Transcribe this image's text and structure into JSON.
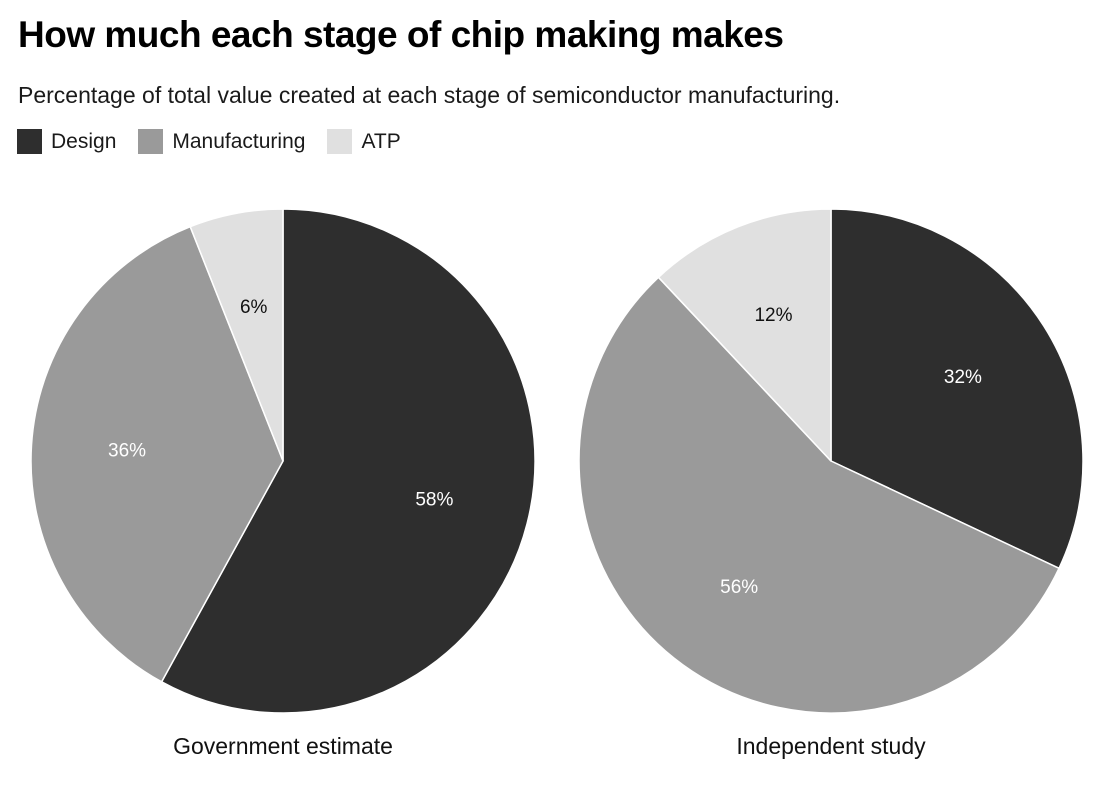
{
  "chart_data": [
    {
      "type": "pie",
      "title": "Government estimate",
      "categories": [
        "Design",
        "Manufacturing",
        "ATP"
      ],
      "values": [
        58,
        36,
        6
      ],
      "labels": [
        "58%",
        "36%",
        "6%"
      ]
    },
    {
      "type": "pie",
      "title": "Independent study",
      "categories": [
        "Design",
        "Manufacturing",
        "ATP"
      ],
      "values": [
        32,
        56,
        12
      ],
      "labels": [
        "32%",
        "56%",
        "12%"
      ]
    }
  ],
  "header": {
    "title": "How much each stage of chip making makes",
    "subtitle": "Percentage of total value created at each stage of semiconductor manufacturing."
  },
  "legend": {
    "items": [
      {
        "label": "Design",
        "color": "#2e2e2e"
      },
      {
        "label": "Manufacturing",
        "color": "#9a9a9a"
      },
      {
        "label": "ATP",
        "color": "#e0e0e0"
      }
    ],
    "placement": "top-left"
  },
  "label_colors": {
    "Design": "#ffffff",
    "Manufacturing": "#ffffff",
    "ATP": "#111111"
  }
}
